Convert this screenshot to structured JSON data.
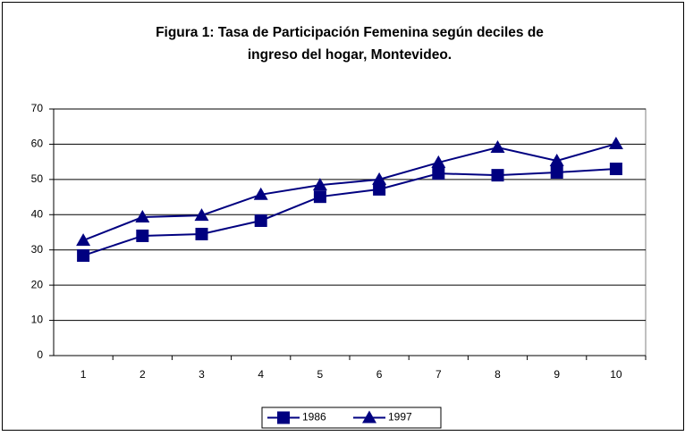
{
  "chart_data": {
    "type": "line",
    "title": [
      "Figura 1: Tasa de Participación Femenina según deciles de",
      "ingreso del hogar, Montevideo."
    ],
    "categories": [
      1,
      2,
      3,
      4,
      5,
      6,
      7,
      8,
      9,
      10
    ],
    "series": [
      {
        "name": "1986",
        "color": "#000080",
        "marker": "square",
        "values": [
          28.4,
          34.0,
          34.5,
          38.3,
          45.1,
          47.2,
          51.7,
          51.2,
          52.0,
          53.0
        ]
      },
      {
        "name": "1997",
        "color": "#000080",
        "marker": "triangle",
        "values": [
          32.7,
          39.3,
          39.8,
          45.7,
          48.4,
          50.0,
          54.8,
          59.1,
          55.3,
          60.1
        ]
      }
    ],
    "ylim": [
      0,
      70
    ],
    "yticks": [
      0,
      10,
      20,
      30,
      40,
      50,
      60,
      70
    ],
    "grid": true,
    "legend": "bottom"
  }
}
